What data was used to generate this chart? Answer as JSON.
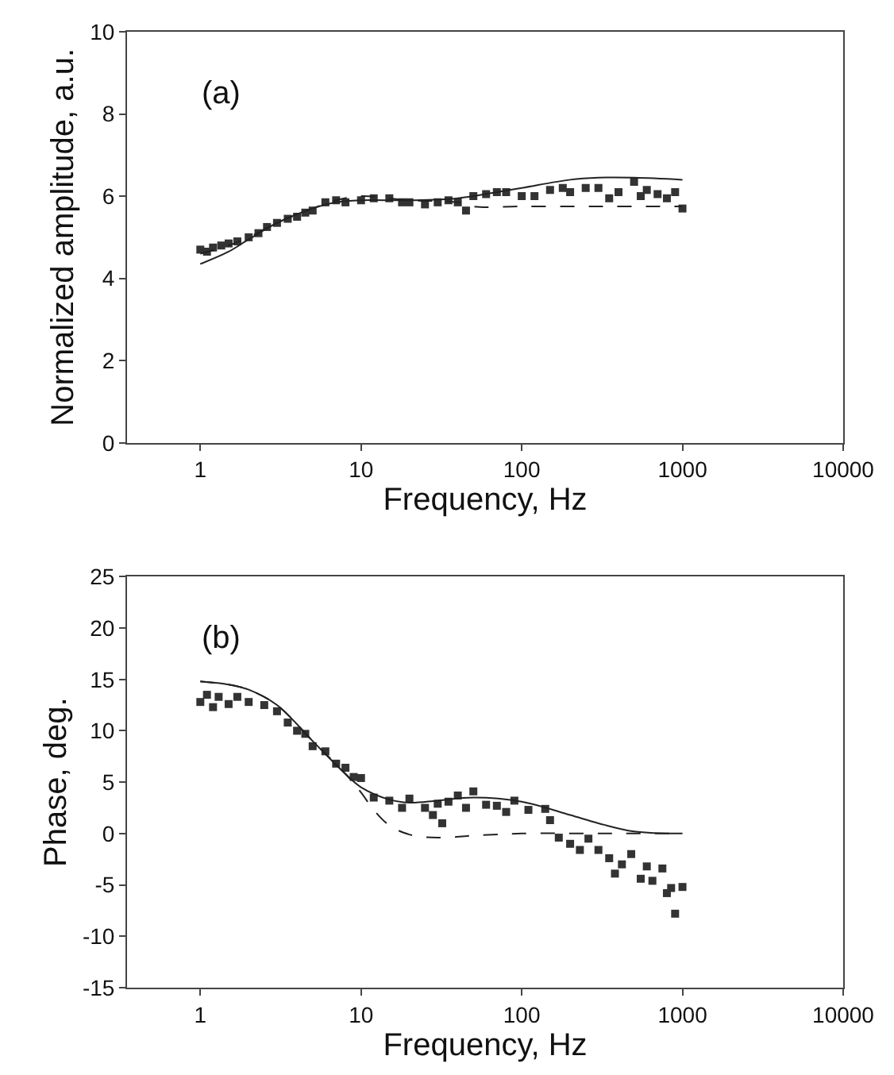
{
  "chart_data": [
    {
      "type": "scatter",
      "xlabel": "Frequency, Hz",
      "ylabel": "Normalized amplitude, a.u.",
      "annotations": [
        "(a)"
      ],
      "log": "x",
      "xlim": [
        0.35,
        10000
      ],
      "xticks": [
        1,
        10,
        100,
        1000,
        10000
      ],
      "ylim": [
        0,
        10
      ],
      "yticks": [
        0,
        2,
        4,
        6,
        8,
        10
      ],
      "series": [
        {
          "marker": "square",
          "color": "#333333",
          "x": [
            1,
            1.1,
            1.2,
            1.35,
            1.5,
            1.7,
            2,
            2.3,
            2.6,
            3,
            3.5,
            4,
            4.5,
            5,
            6,
            7,
            8,
            10,
            12,
            15,
            18,
            20,
            25,
            30,
            35,
            40,
            45,
            50,
            60,
            70,
            80,
            100,
            120,
            150,
            180,
            200,
            250,
            300,
            350,
            400,
            500,
            550,
            600,
            700,
            800,
            900,
            1000
          ],
          "values": [
            4.7,
            4.65,
            4.75,
            4.8,
            4.85,
            4.9,
            5.0,
            5.1,
            5.25,
            5.35,
            5.45,
            5.5,
            5.6,
            5.65,
            5.85,
            5.9,
            5.85,
            5.9,
            5.95,
            5.95,
            5.85,
            5.85,
            5.8,
            5.85,
            5.9,
            5.85,
            5.65,
            6.0,
            6.05,
            6.1,
            6.1,
            6.0,
            6.0,
            6.15,
            6.2,
            6.1,
            6.2,
            6.2,
            5.95,
            6.1,
            6.35,
            6.0,
            6.15,
            6.05,
            5.95,
            6.1,
            5.7
          ]
        },
        {
          "type": "line",
          "line_style": "solid",
          "color": "#222222",
          "x": [
            1,
            1.5,
            2,
            3,
            5,
            7,
            10,
            20,
            40,
            70,
            100,
            200,
            300,
            500,
            1000
          ],
          "values": [
            4.35,
            4.65,
            4.95,
            5.35,
            5.7,
            5.85,
            5.9,
            5.9,
            5.95,
            6.1,
            6.2,
            6.4,
            6.45,
            6.45,
            6.4
          ]
        },
        {
          "type": "line",
          "line_style": "dashed",
          "color": "#222222",
          "x": [
            1,
            1.5,
            2,
            3,
            5,
            7,
            10,
            20,
            40,
            50,
            100,
            300,
            1000
          ],
          "values": [
            4.6,
            4.8,
            5.0,
            5.35,
            5.7,
            5.9,
            6.0,
            5.9,
            5.85,
            5.75,
            5.75,
            5.75,
            5.75
          ]
        }
      ]
    },
    {
      "type": "scatter",
      "xlabel": "Frequency, Hz",
      "ylabel": "Phase, deg.",
      "annotations": [
        "(b)"
      ],
      "log": "x",
      "xlim": [
        0.35,
        10000
      ],
      "xticks": [
        1,
        10,
        100,
        1000,
        10000
      ],
      "ylim": [
        -15,
        25
      ],
      "yticks": [
        -15,
        -10,
        -5,
        0,
        5,
        10,
        15,
        20,
        25
      ],
      "series": [
        {
          "marker": "square",
          "color": "#333333",
          "x": [
            1,
            1.1,
            1.2,
            1.3,
            1.5,
            1.7,
            2,
            2.5,
            3,
            3.5,
            4,
            4.5,
            5,
            6,
            7,
            8,
            9,
            10,
            12,
            15,
            18,
            20,
            25,
            28,
            30,
            32,
            35,
            40,
            45,
            50,
            60,
            70,
            80,
            90,
            110,
            140,
            150,
            170,
            200,
            230,
            260,
            300,
            350,
            380,
            420,
            480,
            550,
            600,
            650,
            750,
            800,
            850,
            900,
            1000
          ],
          "values": [
            12.8,
            13.5,
            12.3,
            13.3,
            12.6,
            13.3,
            12.8,
            12.5,
            11.9,
            10.8,
            10.0,
            9.7,
            8.5,
            8.0,
            6.8,
            6.4,
            5.5,
            5.4,
            3.5,
            3.2,
            2.5,
            3.4,
            2.5,
            1.8,
            2.9,
            1.0,
            3.1,
            3.7,
            2.5,
            4.1,
            2.8,
            2.7,
            2.1,
            3.2,
            2.3,
            2.4,
            1.3,
            -0.4,
            -1.0,
            -1.6,
            -0.5,
            -1.6,
            -2.4,
            -3.9,
            -3.0,
            -2.0,
            -4.4,
            -3.2,
            -4.6,
            -3.4,
            -5.8,
            -5.3,
            -7.8,
            -5.2
          ]
        },
        {
          "type": "line",
          "line_style": "solid",
          "color": "#222222",
          "x": [
            1,
            1.5,
            2,
            3,
            5,
            8,
            10,
            15,
            20,
            30,
            50,
            100,
            200,
            300,
            500,
            1000
          ],
          "values": [
            14.8,
            14.5,
            14.0,
            12.5,
            9.0,
            5.8,
            4.5,
            3.3,
            3.0,
            3.2,
            3.5,
            3.1,
            1.8,
            1.0,
            0.2,
            0.0
          ]
        },
        {
          "type": "line",
          "line_style": "dashed",
          "color": "#222222",
          "x": [
            1,
            1.5,
            2,
            3,
            5,
            8,
            10,
            12,
            15,
            20,
            30,
            50,
            100,
            300,
            1000
          ],
          "values": [
            14.8,
            14.5,
            14.0,
            12.5,
            9.0,
            5.8,
            4.0,
            2.3,
            0.8,
            -0.1,
            -0.4,
            -0.2,
            0.0,
            0.0,
            0.0
          ]
        }
      ]
    }
  ]
}
